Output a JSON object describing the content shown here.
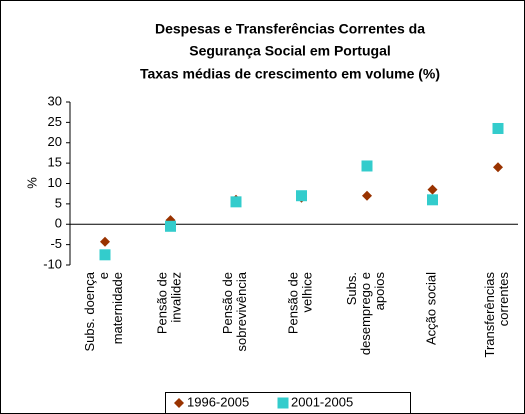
{
  "chart_data": {
    "type": "scatter",
    "title": [
      "Despesas e Transferências Correntes da",
      "Segurança Social em Portugal",
      "Taxas médias de crescimento em volume (%)"
    ],
    "y_label": "%",
    "categories": [
      "Subs. doença e maternidade",
      "Pensão de invalidez",
      "Pensão de sobrevivência",
      "Pensão de velhice",
      "Subs. desemprego e apoios",
      "Acção social",
      "Transferências correntes"
    ],
    "series": [
      {
        "name": "1996-2005",
        "color": "#993300",
        "marker": "diamond",
        "values": [
          -4.3,
          1,
          6,
          6.5,
          7,
          8.5,
          14
        ]
      },
      {
        "name": "2001-2005",
        "color": "#33cccc",
        "marker": "square",
        "values": [
          -7.5,
          -0.5,
          5.5,
          7,
          14.3,
          6,
          23.5
        ]
      }
    ],
    "ylim": [
      -10,
      30
    ],
    "yticks": [
      -10,
      -5,
      0,
      5,
      10,
      15,
      20,
      25,
      30
    ],
    "legend": "bottom"
  }
}
